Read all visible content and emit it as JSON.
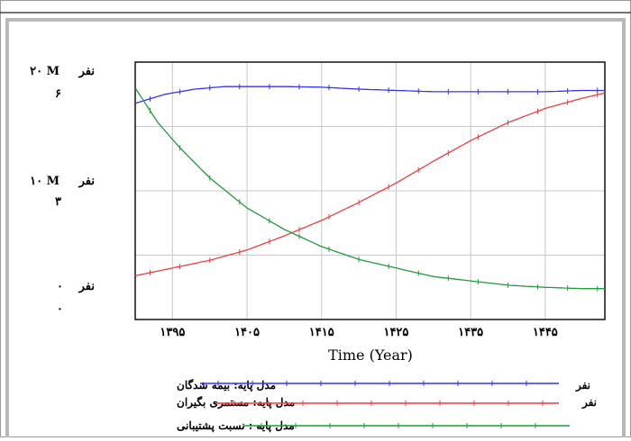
{
  "chart_data": {
    "type": "line",
    "title": "",
    "xlabel": "Time (Year)",
    "xlim": [
      1390,
      1453
    ],
    "x_ticks": [
      "۱۳۹۵",
      "۱۴۰۵",
      "۱۴۱۵",
      "۱۴۲۵",
      "۱۴۳۵",
      "۱۴۴۵"
    ],
    "x_tick_values": [
      1395,
      1405,
      1415,
      1425,
      1435,
      1445
    ],
    "grid": true,
    "legend_position": "bottom",
    "y_axis_left": {
      "unit": "نفر",
      "ticks": [
        {
          "scale1": "۲۰ M",
          "scale2": "۶"
        },
        {
          "scale1": "۱۰ M",
          "scale2": "۳"
        },
        {
          "scale1": "۰",
          "scale2": "۰"
        }
      ]
    },
    "series": [
      {
        "name": "مدل پایه: بیمه شدگان",
        "unit": "نفر",
        "color": "#3535f0",
        "scale": [
          0,
          20000000
        ],
        "x": [
          1390,
          1394,
          1398,
          1402,
          1405,
          1410,
          1415,
          1420,
          1425,
          1430,
          1435,
          1440,
          1445,
          1450,
          1453
        ],
        "y": [
          16800000,
          17500000,
          17900000,
          18100000,
          18100000,
          18100000,
          18050000,
          17900000,
          17800000,
          17700000,
          17700000,
          17700000,
          17700000,
          17800000,
          17800000
        ]
      },
      {
        "name": "مدل پایه: مستمری بگیران",
        "unit": "نفر",
        "color": "#f03c3c",
        "scale": [
          0,
          20000000
        ],
        "x": [
          1390,
          1395,
          1400,
          1405,
          1410,
          1415,
          1420,
          1425,
          1430,
          1435,
          1440,
          1445,
          1450,
          1453
        ],
        "y": [
          3400000,
          4000000,
          4600000,
          5400000,
          6500000,
          7700000,
          9100000,
          10600000,
          12300000,
          13900000,
          15300000,
          16400000,
          17200000,
          17600000
        ]
      },
      {
        "name": "مدل پایه : نسبت پشتیبانی",
        "unit": "",
        "color": "#229a3c",
        "scale": [
          0,
          6
        ],
        "x": [
          1390,
          1393,
          1396,
          1400,
          1405,
          1410,
          1415,
          1420,
          1425,
          1430,
          1435,
          1440,
          1445,
          1450,
          1453
        ],
        "y": [
          5.4,
          4.6,
          4.0,
          3.3,
          2.6,
          2.1,
          1.7,
          1.4,
          1.2,
          1.0,
          0.9,
          0.8,
          0.75,
          0.72,
          0.72
        ]
      }
    ]
  }
}
